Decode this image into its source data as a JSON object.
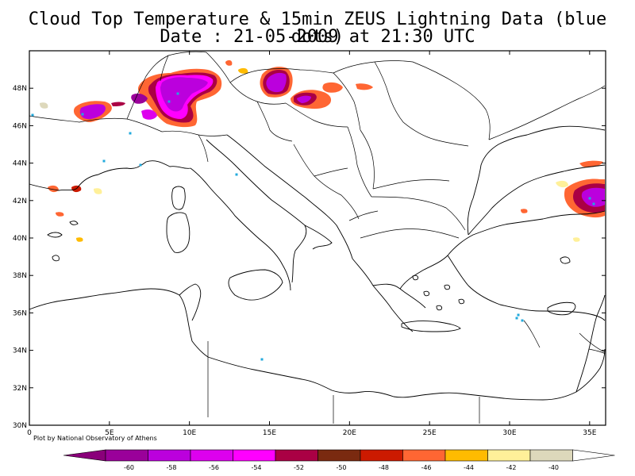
{
  "title": {
    "line1": "Cloud Top Temperature & 15min ZEUS Lightning Data (blue dots)",
    "line2": "Date : 21-05-2009 at 21:30 UTC"
  },
  "map": {
    "lon_range": [
      0,
      36
    ],
    "lat_range": [
      30,
      50
    ],
    "lat_labels": [
      "30N",
      "32N",
      "34N",
      "36N",
      "38N",
      "40N",
      "42N",
      "44N",
      "46N",
      "48N"
    ],
    "lon_labels": [
      "0",
      "5E",
      "10E",
      "15E",
      "20E",
      "25E",
      "30E",
      "35E"
    ],
    "lightning_color": "#22aadd",
    "coast_color": "#000000"
  },
  "credit": "Plot by National Observatory of Athens",
  "colorbar": {
    "labels": [
      "-60",
      "-58",
      "-56",
      "-54",
      "-52",
      "-50",
      "-48",
      "-46",
      "-44",
      "-42",
      "-40"
    ],
    "colors": [
      "#9a009a",
      "#bb00dd",
      "#dd00ee",
      "#ff00ff",
      "#aa0044",
      "#7a2a10",
      "#cc1a00",
      "#ff6633",
      "#ffbb00",
      "#fff099",
      "#ddd8bb"
    ],
    "left_arrow_color": "#8a007a",
    "right_arrow_color": "#ffffff"
  }
}
